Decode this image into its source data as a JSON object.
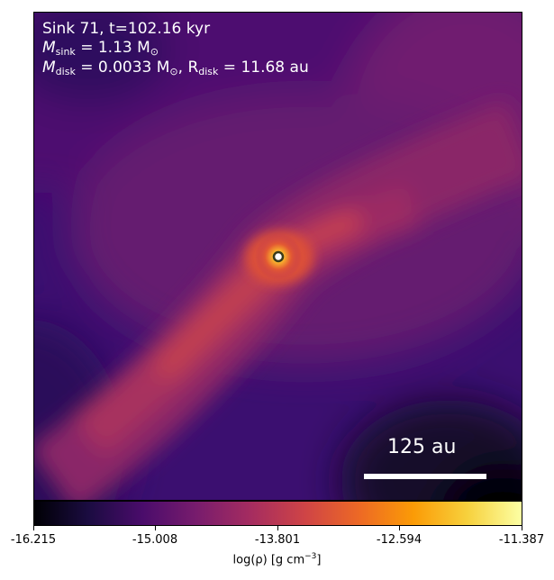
{
  "image": {
    "sink_id_line": "Sink 71, t=102.16 kyr",
    "sink_mass_symbol": "M",
    "sink_mass_sub": "sink",
    "sink_mass_value": " = 1.13 M",
    "sink_mass_unit_sub": "⊙",
    "disk_mass_symbol": "M",
    "disk_mass_sub": "disk",
    "disk_mass_value": " = 0.0033 M",
    "disk_mass_unit_sub": "⊙",
    "disk_radius_symbol": ", R",
    "disk_radius_sub": "disk",
    "disk_radius_value": " = 11.68 au",
    "scale_bar_label": "125 au"
  },
  "colorbar": {
    "ticks": [
      "-16.215",
      "-15.008",
      "-13.801",
      "-12.594",
      "-11.387"
    ],
    "label_main": "log(ρ) [g cm",
    "label_exp": "−3",
    "label_close": "]",
    "colormap": "inferno",
    "stops": [
      "#000004",
      "#1b0c41",
      "#4a0c6b",
      "#781c6d",
      "#a52c60",
      "#cf4446",
      "#ed6925",
      "#fb9b06",
      "#f7d13d",
      "#fcffa4"
    ]
  },
  "colors": {
    "sink_marker_fill": "#ffffff",
    "sink_marker_edge": "#3a3a1a"
  }
}
